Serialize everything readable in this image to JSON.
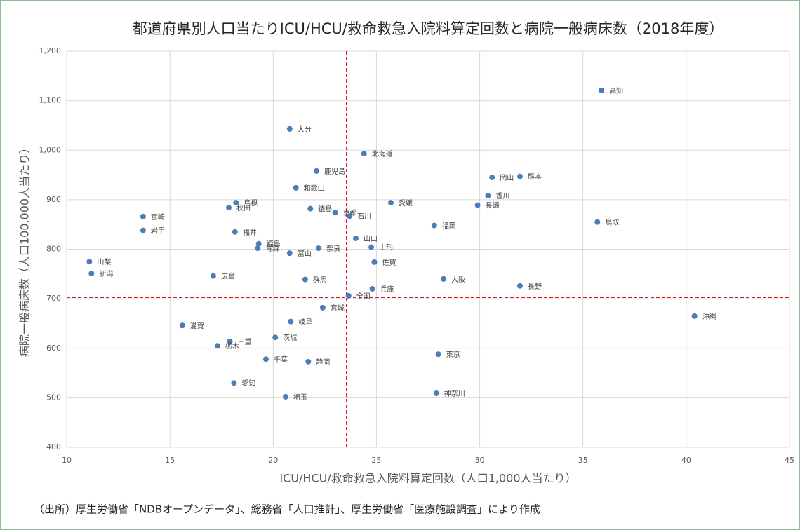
{
  "chart_data": {
    "type": "scatter",
    "title": "都道府県別人口当たりICU/HCU/救命救急入院料算定回数と病院一般病床数（2018年度）",
    "xlabel": "ICU/HCU/救命救急入院料算定回数（人口1,000人当たり）",
    "ylabel": "病院一般病床数（人口100,000人当たり）",
    "note": "（出所）厚生労働省「NDBオープンデータ」、総務省「人口推計」、厚生労働省「医療施設調査」により作成",
    "color": "#4a7ebb",
    "grid": true,
    "xlim": [
      10,
      45
    ],
    "xticks": [
      10,
      15,
      20,
      25,
      30,
      35,
      40,
      45
    ],
    "ylim": [
      400,
      1200
    ],
    "yticks": [
      400,
      500,
      600,
      700,
      800,
      900,
      {
        "value": 1000,
        "label": "1,000"
      },
      {
        "value": 1100,
        "label": "1,100"
      },
      {
        "value": 1200,
        "label": "1,200"
      }
    ],
    "reference_lines": {
      "x": 23.56,
      "y": 703,
      "color": "#e8161b"
    },
    "categories": [
      "高知",
      "大分",
      "北海道",
      "鹿児島",
      "岡山",
      "熊本",
      "和歌山",
      "香川",
      "愛媛",
      "長崎",
      "島根",
      "秋田",
      "徳島",
      "京都",
      "石川",
      "宮崎",
      "鳥取",
      "福岡",
      "岩手",
      "福井",
      "山口",
      "福島",
      "青森",
      "山形",
      "奈良",
      "富山",
      "山梨",
      "佐賀",
      "新潟",
      "広島",
      "大阪",
      "群馬",
      "長野",
      "兵庫",
      "全国",
      "宮城",
      "岐阜",
      "沖縄",
      "滋賀",
      "茨城",
      "三重",
      "栃木",
      "東京",
      "千葉",
      "静岡",
      "愛知",
      "神奈川",
      "埼玉"
    ],
    "x": [
      35.9,
      20.8,
      24.4,
      22.1,
      30.6,
      31.95,
      21.1,
      30.4,
      25.7,
      29.9,
      18.2,
      17.85,
      21.8,
      23.0,
      23.7,
      13.7,
      35.7,
      27.8,
      13.7,
      18.15,
      24.0,
      19.3,
      19.25,
      24.75,
      22.2,
      20.8,
      11.1,
      24.9,
      11.2,
      17.1,
      28.25,
      21.55,
      31.95,
      24.8,
      23.65,
      22.4,
      20.85,
      40.4,
      15.6,
      20.1,
      17.9,
      17.3,
      28.0,
      19.65,
      21.7,
      18.1,
      27.9,
      20.6
    ],
    "values": [
      1121,
      1043,
      993,
      958,
      945,
      947,
      924,
      908,
      894,
      889,
      894,
      884,
      882,
      874,
      867,
      866,
      855,
      848,
      838,
      835,
      822,
      811,
      802,
      804,
      802,
      792,
      775,
      774,
      751,
      746,
      740,
      739,
      726,
      720,
      706,
      682,
      654,
      665,
      646,
      622,
      614,
      605,
      588,
      578,
      573,
      530,
      509,
      502
    ]
  }
}
